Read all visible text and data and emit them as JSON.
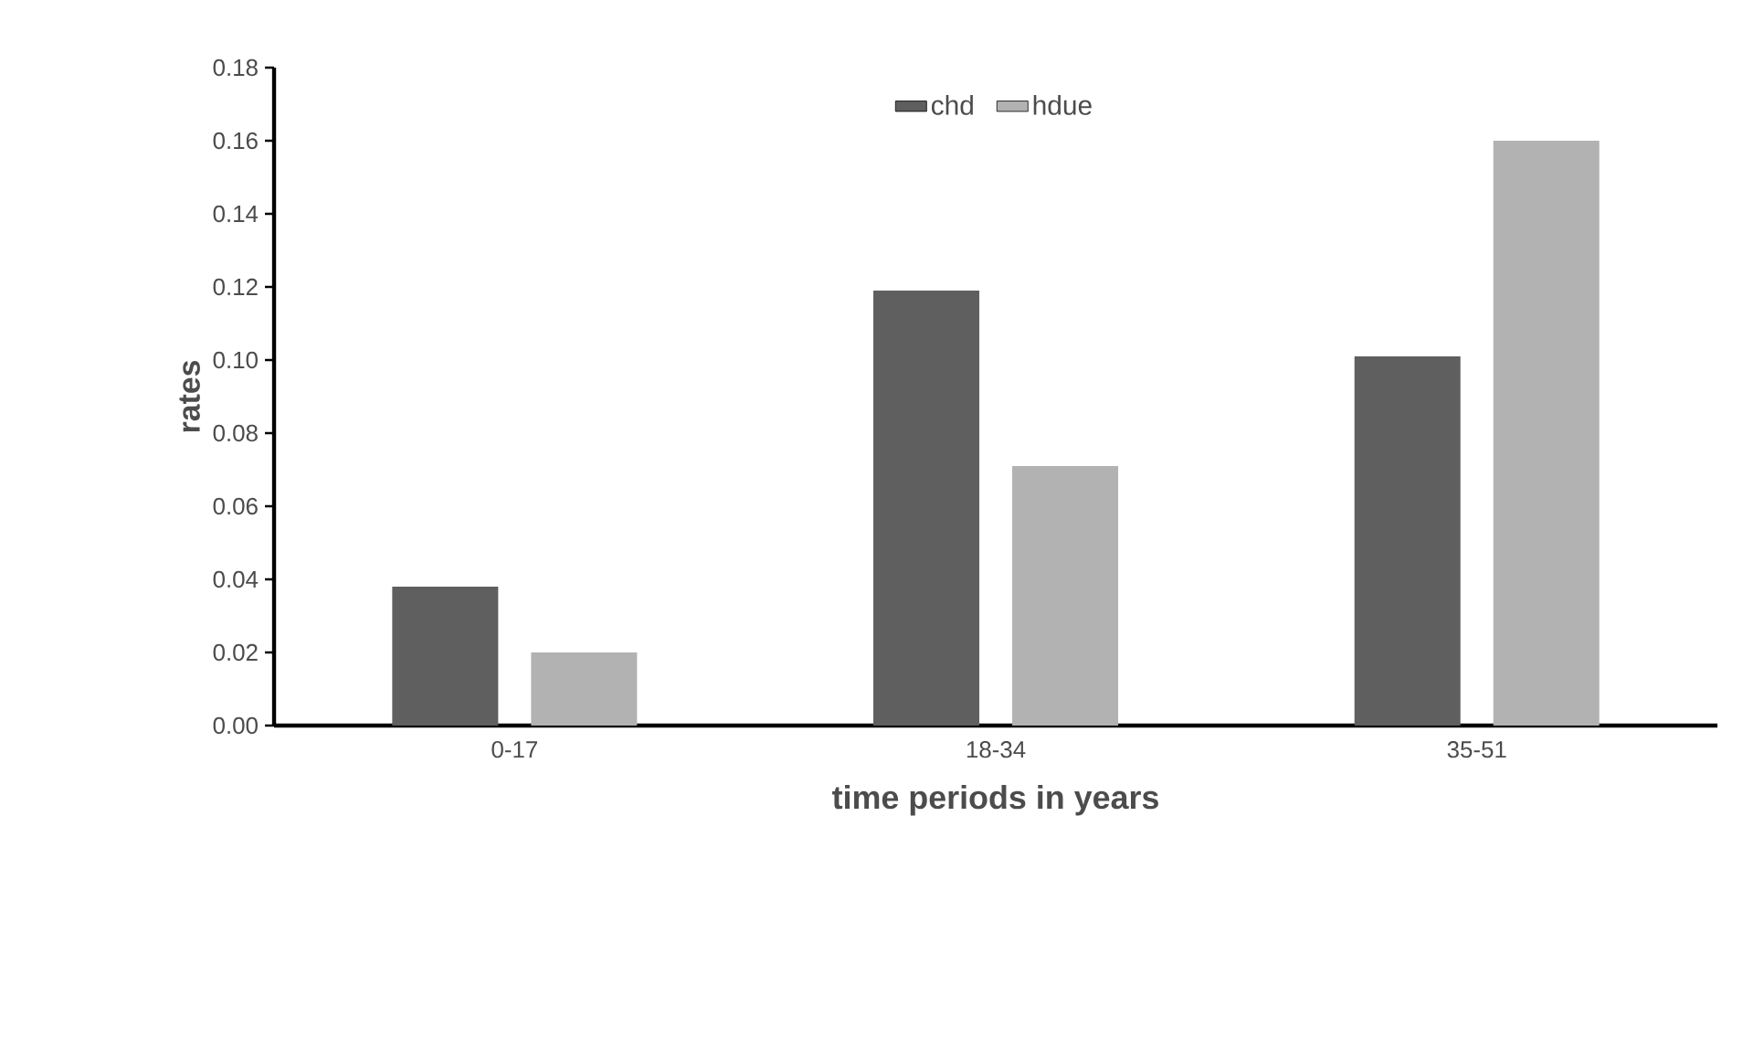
{
  "chart_data": {
    "type": "bar",
    "xlabel": "time periods in years",
    "ylabel": "rates",
    "categories": [
      "0-17",
      "18-34",
      "35-51"
    ],
    "series": [
      {
        "name": "chd",
        "color": "#5f5f5f",
        "values": [
          0.038,
          0.119,
          0.101
        ]
      },
      {
        "name": "hdue",
        "color": "#b2b2b2",
        "values": [
          0.02,
          0.071,
          0.16
        ]
      }
    ],
    "ylim": [
      0,
      0.18
    ],
    "yticks": [
      {
        "value": 0,
        "label": "0.00"
      },
      {
        "value": 0.02,
        "label": "0.02"
      },
      {
        "value": 0.04,
        "label": "0.04"
      },
      {
        "value": 0.06,
        "label": "0.06"
      },
      {
        "value": 0.08,
        "label": "0.08"
      },
      {
        "value": 0.1,
        "label": "0.10"
      },
      {
        "value": 0.12,
        "label": "0.12"
      },
      {
        "value": 0.14,
        "label": "0.14"
      },
      {
        "value": 0.16,
        "label": "0.16"
      },
      {
        "value": 0.18,
        "label": "0.18"
      }
    ],
    "grid": false,
    "legend": "top"
  }
}
